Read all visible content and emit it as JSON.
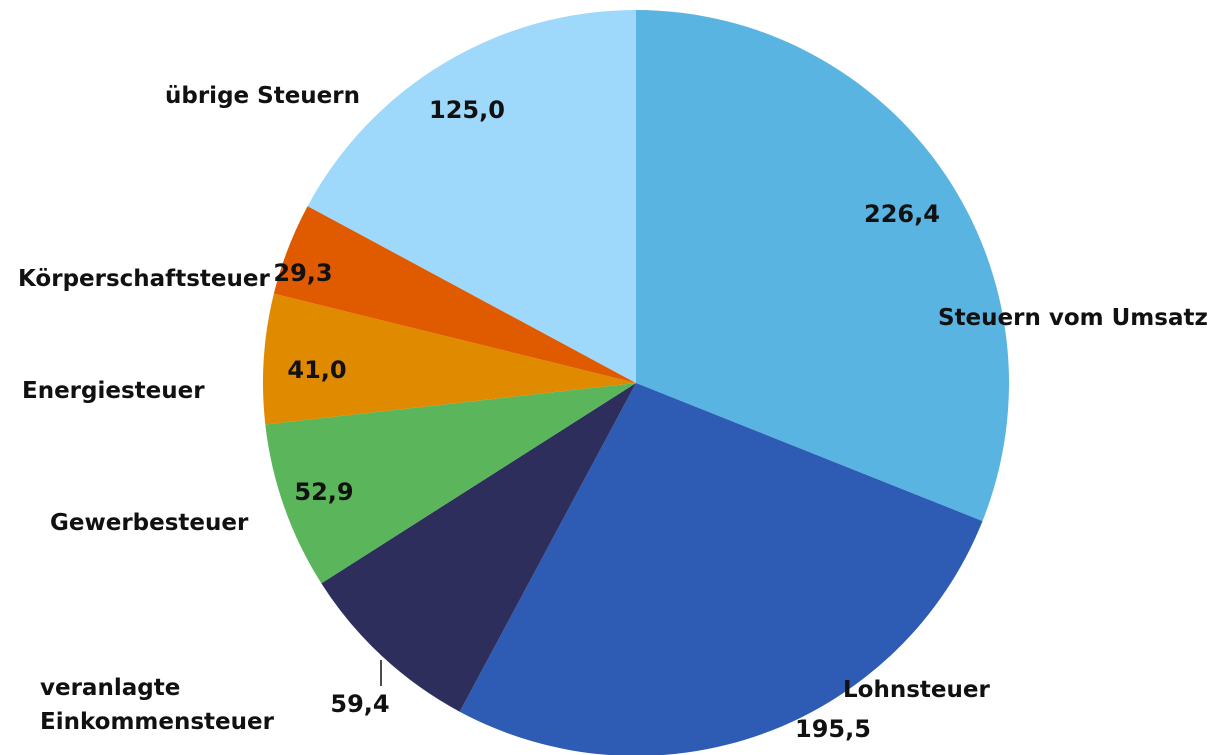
{
  "chart_data": {
    "type": "pie",
    "categories": [
      "Steuern vom Umsatz",
      "Lohnsteuer",
      "veranlagte Einkommensteuer",
      "Gewerbesteuer",
      "Energiesteuer",
      "Körperschaftsteuer",
      "übrige Steuern"
    ],
    "values": [
      226.4,
      195.5,
      59.4,
      52.9,
      41.0,
      29.3,
      125.0
    ],
    "value_labels": [
      "226,4",
      "195,5",
      "59,4",
      "52,9",
      "41,0",
      "29,3",
      "125,0"
    ],
    "colors": [
      "#5ab4e2",
      "#2e5bb4",
      "#2e2e5c",
      "#5bb55b",
      "#e08a00",
      "#e05a00",
      "#9ed8fb"
    ]
  }
}
